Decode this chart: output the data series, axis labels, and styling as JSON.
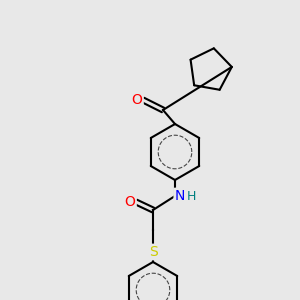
{
  "bg_color": "#e8e8e8",
  "bond_color": "#000000",
  "bond_width": 1.5,
  "atom_colors": {
    "O": "#ff0000",
    "N": "#0000ff",
    "S": "#cccc00",
    "H": "#008080",
    "C": "#000000"
  },
  "font_size": 9,
  "figsize": [
    3.0,
    3.0
  ],
  "dpi": 100
}
